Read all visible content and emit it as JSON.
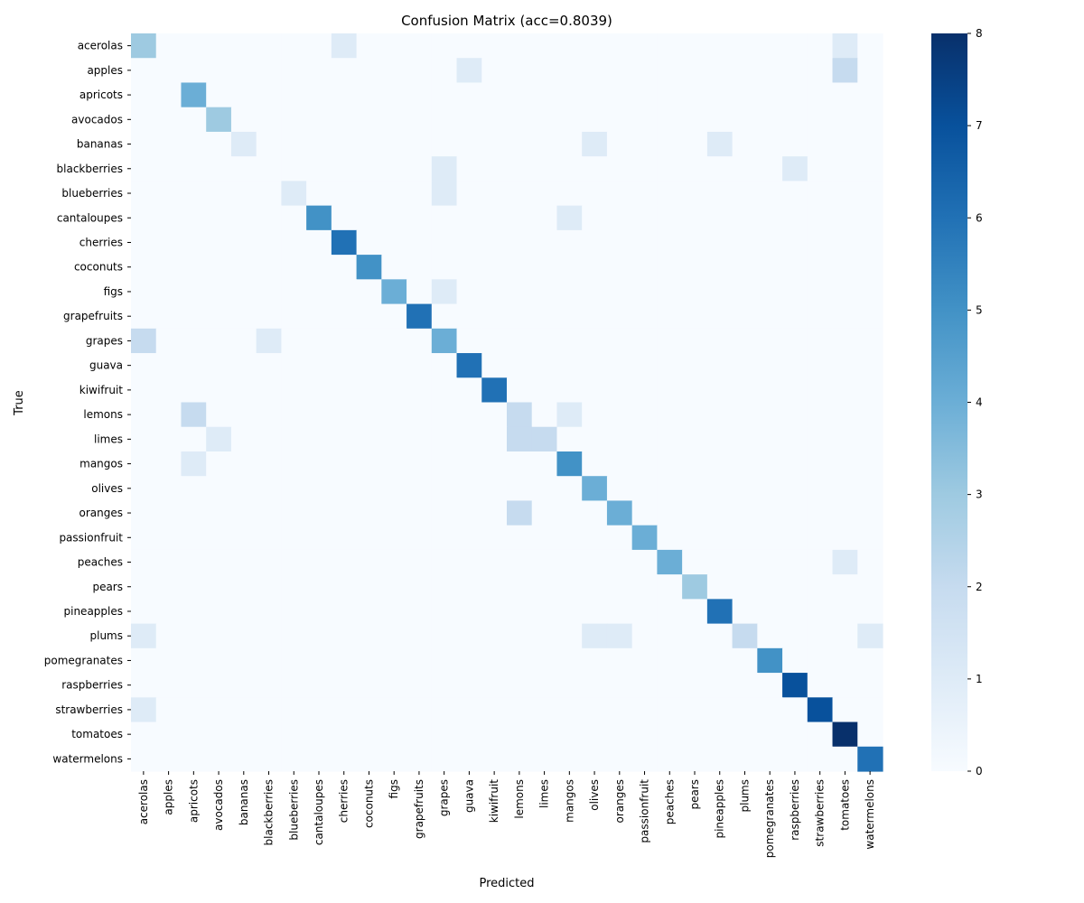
{
  "chart_data": {
    "type": "heatmap",
    "title": "Confusion Matrix (acc=0.8039)",
    "xlabel": "Predicted",
    "ylabel": "True",
    "x_categories": [
      "acerolas",
      "apples",
      "apricots",
      "avocados",
      "bananas",
      "blackberries",
      "blueberries",
      "cantaloupes",
      "cherries",
      "coconuts",
      "figs",
      "grapefruits",
      "grapes",
      "guava",
      "kiwifruit",
      "lemons",
      "limes",
      "mangos",
      "olives",
      "oranges",
      "passionfruit",
      "peaches",
      "pears",
      "pineapples",
      "plums",
      "pomegranates",
      "raspberries",
      "strawberries",
      "tomatoes",
      "watermelons"
    ],
    "y_categories": [
      "acerolas",
      "apples",
      "apricots",
      "avocados",
      "bananas",
      "blackberries",
      "blueberries",
      "cantaloupes",
      "cherries",
      "coconuts",
      "figs",
      "grapefruits",
      "grapes",
      "guava",
      "kiwifruit",
      "lemons",
      "limes",
      "mangos",
      "olives",
      "oranges",
      "passionfruit",
      "peaches",
      "pears",
      "pineapples",
      "plums",
      "pomegranates",
      "raspberries",
      "strawberries",
      "tomatoes",
      "watermelons"
    ],
    "matrix": [
      [
        3,
        0,
        0,
        0,
        0,
        0,
        0,
        0,
        1,
        0,
        0,
        0,
        0,
        0,
        0,
        0,
        0,
        0,
        0,
        0,
        0,
        0,
        0,
        0,
        0,
        0,
        0,
        0,
        1,
        0
      ],
      [
        0,
        0,
        0,
        0,
        0,
        0,
        0,
        0,
        0,
        0,
        0,
        0,
        0,
        1,
        0,
        0,
        0,
        0,
        0,
        0,
        0,
        0,
        0,
        0,
        0,
        0,
        0,
        0,
        2,
        0
      ],
      [
        0,
        0,
        4,
        0,
        0,
        0,
        0,
        0,
        0,
        0,
        0,
        0,
        0,
        0,
        0,
        0,
        0,
        0,
        0,
        0,
        0,
        0,
        0,
        0,
        0,
        0,
        0,
        0,
        0,
        0
      ],
      [
        0,
        0,
        0,
        3,
        0,
        0,
        0,
        0,
        0,
        0,
        0,
        0,
        0,
        0,
        0,
        0,
        0,
        0,
        0,
        0,
        0,
        0,
        0,
        0,
        0,
        0,
        0,
        0,
        0,
        0
      ],
      [
        0,
        0,
        0,
        0,
        1,
        0,
        0,
        0,
        0,
        0,
        0,
        0,
        0,
        0,
        0,
        0,
        0,
        0,
        1,
        0,
        0,
        0,
        0,
        1,
        0,
        0,
        0,
        0,
        0,
        0
      ],
      [
        0,
        0,
        0,
        0,
        0,
        0,
        0,
        0,
        0,
        0,
        0,
        0,
        1,
        0,
        0,
        0,
        0,
        0,
        0,
        0,
        0,
        0,
        0,
        0,
        0,
        0,
        1,
        0,
        0,
        0
      ],
      [
        0,
        0,
        0,
        0,
        0,
        0,
        1,
        0,
        0,
        0,
        0,
        0,
        1,
        0,
        0,
        0,
        0,
        0,
        0,
        0,
        0,
        0,
        0,
        0,
        0,
        0,
        0,
        0,
        0,
        0
      ],
      [
        0,
        0,
        0,
        0,
        0,
        0,
        0,
        5,
        0,
        0,
        0,
        0,
        0,
        0,
        0,
        0,
        0,
        1,
        0,
        0,
        0,
        0,
        0,
        0,
        0,
        0,
        0,
        0,
        0,
        0
      ],
      [
        0,
        0,
        0,
        0,
        0,
        0,
        0,
        0,
        6,
        0,
        0,
        0,
        0,
        0,
        0,
        0,
        0,
        0,
        0,
        0,
        0,
        0,
        0,
        0,
        0,
        0,
        0,
        0,
        0,
        0
      ],
      [
        0,
        0,
        0,
        0,
        0,
        0,
        0,
        0,
        0,
        5,
        0,
        0,
        0,
        0,
        0,
        0,
        0,
        0,
        0,
        0,
        0,
        0,
        0,
        0,
        0,
        0,
        0,
        0,
        0,
        0
      ],
      [
        0,
        0,
        0,
        0,
        0,
        0,
        0,
        0,
        0,
        0,
        4,
        0,
        1,
        0,
        0,
        0,
        0,
        0,
        0,
        0,
        0,
        0,
        0,
        0,
        0,
        0,
        0,
        0,
        0,
        0
      ],
      [
        0,
        0,
        0,
        0,
        0,
        0,
        0,
        0,
        0,
        0,
        0,
        6,
        0,
        0,
        0,
        0,
        0,
        0,
        0,
        0,
        0,
        0,
        0,
        0,
        0,
        0,
        0,
        0,
        0,
        0
      ],
      [
        2,
        0,
        0,
        0,
        0,
        1,
        0,
        0,
        0,
        0,
        0,
        0,
        4,
        0,
        0,
        0,
        0,
        0,
        0,
        0,
        0,
        0,
        0,
        0,
        0,
        0,
        0,
        0,
        0,
        0
      ],
      [
        0,
        0,
        0,
        0,
        0,
        0,
        0,
        0,
        0,
        0,
        0,
        0,
        0,
        6,
        0,
        0,
        0,
        0,
        0,
        0,
        0,
        0,
        0,
        0,
        0,
        0,
        0,
        0,
        0,
        0
      ],
      [
        0,
        0,
        0,
        0,
        0,
        0,
        0,
        0,
        0,
        0,
        0,
        0,
        0,
        0,
        6,
        0,
        0,
        0,
        0,
        0,
        0,
        0,
        0,
        0,
        0,
        0,
        0,
        0,
        0,
        0
      ],
      [
        0,
        0,
        2,
        0,
        0,
        0,
        0,
        0,
        0,
        0,
        0,
        0,
        0,
        0,
        0,
        2,
        0,
        1,
        0,
        0,
        0,
        0,
        0,
        0,
        0,
        0,
        0,
        0,
        0,
        0
      ],
      [
        0,
        0,
        0,
        1,
        0,
        0,
        0,
        0,
        0,
        0,
        0,
        0,
        0,
        0,
        0,
        2,
        2,
        0,
        0,
        0,
        0,
        0,
        0,
        0,
        0,
        0,
        0,
        0,
        0,
        0
      ],
      [
        0,
        0,
        1,
        0,
        0,
        0,
        0,
        0,
        0,
        0,
        0,
        0,
        0,
        0,
        0,
        0,
        0,
        5,
        0,
        0,
        0,
        0,
        0,
        0,
        0,
        0,
        0,
        0,
        0,
        0
      ],
      [
        0,
        0,
        0,
        0,
        0,
        0,
        0,
        0,
        0,
        0,
        0,
        0,
        0,
        0,
        0,
        0,
        0,
        0,
        4,
        0,
        0,
        0,
        0,
        0,
        0,
        0,
        0,
        0,
        0,
        0
      ],
      [
        0,
        0,
        0,
        0,
        0,
        0,
        0,
        0,
        0,
        0,
        0,
        0,
        0,
        0,
        0,
        2,
        0,
        0,
        0,
        4,
        0,
        0,
        0,
        0,
        0,
        0,
        0,
        0,
        0,
        0
      ],
      [
        0,
        0,
        0,
        0,
        0,
        0,
        0,
        0,
        0,
        0,
        0,
        0,
        0,
        0,
        0,
        0,
        0,
        0,
        0,
        0,
        4,
        0,
        0,
        0,
        0,
        0,
        0,
        0,
        0,
        0
      ],
      [
        0,
        0,
        0,
        0,
        0,
        0,
        0,
        0,
        0,
        0,
        0,
        0,
        0,
        0,
        0,
        0,
        0,
        0,
        0,
        0,
        0,
        4,
        0,
        0,
        0,
        0,
        0,
        0,
        1,
        0
      ],
      [
        0,
        0,
        0,
        0,
        0,
        0,
        0,
        0,
        0,
        0,
        0,
        0,
        0,
        0,
        0,
        0,
        0,
        0,
        0,
        0,
        0,
        0,
        3,
        0,
        0,
        0,
        0,
        0,
        0,
        0
      ],
      [
        0,
        0,
        0,
        0,
        0,
        0,
        0,
        0,
        0,
        0,
        0,
        0,
        0,
        0,
        0,
        0,
        0,
        0,
        0,
        0,
        0,
        0,
        0,
        6,
        0,
        0,
        0,
        0,
        0,
        0
      ],
      [
        1,
        0,
        0,
        0,
        0,
        0,
        0,
        0,
        0,
        0,
        0,
        0,
        0,
        0,
        0,
        0,
        0,
        0,
        1,
        1,
        0,
        0,
        0,
        0,
        2,
        0,
        0,
        0,
        0,
        1
      ],
      [
        0,
        0,
        0,
        0,
        0,
        0,
        0,
        0,
        0,
        0,
        0,
        0,
        0,
        0,
        0,
        0,
        0,
        0,
        0,
        0,
        0,
        0,
        0,
        0,
        0,
        5,
        0,
        0,
        0,
        0
      ],
      [
        0,
        0,
        0,
        0,
        0,
        0,
        0,
        0,
        0,
        0,
        0,
        0,
        0,
        0,
        0,
        0,
        0,
        0,
        0,
        0,
        0,
        0,
        0,
        0,
        0,
        0,
        7,
        0,
        0,
        0
      ],
      [
        1,
        0,
        0,
        0,
        0,
        0,
        0,
        0,
        0,
        0,
        0,
        0,
        0,
        0,
        0,
        0,
        0,
        0,
        0,
        0,
        0,
        0,
        0,
        0,
        0,
        0,
        0,
        7,
        0,
        0
      ],
      [
        0,
        0,
        0,
        0,
        0,
        0,
        0,
        0,
        0,
        0,
        0,
        0,
        0,
        0,
        0,
        0,
        0,
        0,
        0,
        0,
        0,
        0,
        0,
        0,
        0,
        0,
        0,
        0,
        8,
        0
      ],
      [
        0,
        0,
        0,
        0,
        0,
        0,
        0,
        0,
        0,
        0,
        0,
        0,
        0,
        0,
        0,
        0,
        0,
        0,
        0,
        0,
        0,
        0,
        0,
        0,
        0,
        0,
        0,
        0,
        0,
        6
      ]
    ],
    "colorbar": {
      "min": 0,
      "max": 8,
      "ticks": [
        "0",
        "1",
        "2",
        "3",
        "4",
        "5",
        "6",
        "7",
        "8"
      ]
    },
    "colormap": "Blues",
    "grid": false,
    "legend": "none"
  }
}
